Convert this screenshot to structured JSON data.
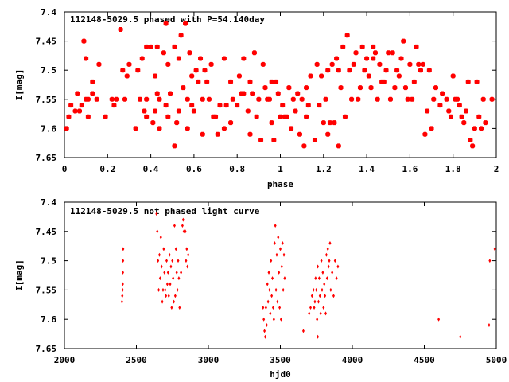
{
  "chart_data": [
    {
      "type": "scatter",
      "title": "112148-5029.5 phased with P=54.140day",
      "xlabel": "phase",
      "ylabel": "I[mag]",
      "xlim": [
        0,
        2
      ],
      "ylim": [
        7.4,
        7.65
      ],
      "y_inverted": true,
      "x_ticks": [
        "0",
        "0.2",
        "0.4",
        "0.6",
        "0.8",
        "1",
        "1.2",
        "1.4",
        "1.6",
        "1.8",
        "2"
      ],
      "y_ticks": [
        "7.4",
        "7.45",
        "7.5",
        "7.55",
        "7.6",
        "7.65"
      ],
      "marker_color": "#ff0000",
      "marker": "filled-circle",
      "points": [
        [
          0.01,
          7.6
        ],
        [
          0.02,
          7.58
        ],
        [
          0.03,
          7.56
        ],
        [
          0.05,
          7.57
        ],
        [
          0.06,
          7.54
        ],
        [
          0.07,
          7.57
        ],
        [
          0.08,
          7.56
        ],
        [
          0.09,
          7.45
        ],
        [
          0.1,
          7.55
        ],
        [
          0.1,
          7.48
        ],
        [
          0.11,
          7.55
        ],
        [
          0.11,
          7.58
        ],
        [
          0.13,
          7.52
        ],
        [
          0.13,
          7.54
        ],
        [
          0.15,
          7.55
        ],
        [
          0.16,
          7.49
        ],
        [
          0.19,
          7.58
        ],
        [
          0.22,
          7.55
        ],
        [
          0.23,
          7.56
        ],
        [
          0.24,
          7.55
        ],
        [
          0.26,
          7.43
        ],
        [
          0.27,
          7.5
        ],
        [
          0.28,
          7.55
        ],
        [
          0.29,
          7.51
        ],
        [
          0.3,
          7.49
        ],
        [
          0.33,
          7.6
        ],
        [
          0.34,
          7.5
        ],
        [
          0.35,
          7.55
        ],
        [
          0.36,
          7.48
        ],
        [
          0.37,
          7.57
        ],
        [
          0.38,
          7.46
        ],
        [
          0.38,
          7.55
        ],
        [
          0.38,
          7.58
        ],
        [
          0.4,
          7.46
        ],
        [
          0.41,
          7.59
        ],
        [
          0.42,
          7.51
        ],
        [
          0.42,
          7.57
        ],
        [
          0.43,
          7.54
        ],
        [
          0.43,
          7.46
        ],
        [
          0.44,
          7.55
        ],
        [
          0.44,
          7.6
        ],
        [
          0.46,
          7.47
        ],
        [
          0.47,
          7.42
        ],
        [
          0.47,
          7.56
        ],
        [
          0.48,
          7.49
        ],
        [
          0.48,
          7.58
        ],
        [
          0.49,
          7.54
        ],
        [
          0.51,
          7.63
        ],
        [
          0.51,
          7.46
        ],
        [
          0.52,
          7.59
        ],
        [
          0.53,
          7.48
        ],
        [
          0.53,
          7.57
        ],
        [
          0.54,
          7.44
        ],
        [
          0.55,
          7.53
        ],
        [
          0.56,
          7.42
        ],
        [
          0.57,
          7.55
        ],
        [
          0.57,
          7.6
        ],
        [
          0.58,
          7.47
        ],
        [
          0.59,
          7.51
        ],
        [
          0.59,
          7.56
        ],
        [
          0.6,
          7.57
        ],
        [
          0.61,
          7.5
        ],
        [
          0.62,
          7.52
        ],
        [
          0.63,
          7.48
        ],
        [
          0.64,
          7.61
        ],
        [
          0.64,
          7.55
        ],
        [
          0.65,
          7.5
        ],
        [
          0.66,
          7.52
        ],
        [
          0.67,
          7.55
        ],
        [
          0.68,
          7.49
        ],
        [
          0.69,
          7.58
        ],
        [
          0.7,
          7.58
        ],
        [
          0.71,
          7.61
        ],
        [
          0.72,
          7.56
        ],
        [
          0.74,
          7.48
        ],
        [
          0.74,
          7.6
        ],
        [
          0.75,
          7.56
        ],
        [
          0.77,
          7.52
        ],
        [
          0.77,
          7.59
        ],
        [
          0.78,
          7.55
        ],
        [
          0.8,
          7.56
        ],
        [
          0.81,
          7.51
        ],
        [
          0.82,
          7.54
        ],
        [
          0.83,
          7.54
        ],
        [
          0.83,
          7.48
        ],
        [
          0.85,
          7.57
        ],
        [
          0.86,
          7.61
        ],
        [
          0.86,
          7.52
        ],
        [
          0.87,
          7.54
        ],
        [
          0.88,
          7.47
        ],
        [
          0.89,
          7.58
        ],
        [
          0.9,
          7.55
        ],
        [
          0.91,
          7.62
        ],
        [
          0.92,
          7.49
        ],
        [
          0.93,
          7.53
        ],
        [
          0.94,
          7.55
        ],
        [
          0.95,
          7.55
        ],
        [
          0.96,
          7.52
        ],
        [
          0.96,
          7.59
        ],
        [
          0.97,
          7.62
        ],
        [
          0.98,
          7.52
        ],
        [
          0.99,
          7.54
        ],
        [
          1.0,
          7.58
        ],
        [
          1.01,
          7.56
        ],
        [
          1.02,
          7.58
        ],
        [
          1.03,
          7.58
        ],
        [
          1.04,
          7.53
        ],
        [
          1.05,
          7.6
        ],
        [
          1.06,
          7.55
        ],
        [
          1.07,
          7.57
        ],
        [
          1.08,
          7.54
        ],
        [
          1.09,
          7.61
        ],
        [
          1.1,
          7.55
        ],
        [
          1.11,
          7.63
        ],
        [
          1.12,
          7.53
        ],
        [
          1.12,
          7.58
        ],
        [
          1.13,
          7.56
        ],
        [
          1.14,
          7.51
        ],
        [
          1.16,
          7.62
        ],
        [
          1.17,
          7.49
        ],
        [
          1.18,
          7.56
        ],
        [
          1.19,
          7.51
        ],
        [
          1.2,
          7.59
        ],
        [
          1.21,
          7.55
        ],
        [
          1.22,
          7.5
        ],
        [
          1.22,
          7.61
        ],
        [
          1.23,
          7.59
        ],
        [
          1.24,
          7.49
        ],
        [
          1.25,
          7.59
        ],
        [
          1.26,
          7.48
        ],
        [
          1.27,
          7.63
        ],
        [
          1.27,
          7.5
        ],
        [
          1.28,
          7.53
        ],
        [
          1.29,
          7.46
        ],
        [
          1.3,
          7.58
        ],
        [
          1.31,
          7.44
        ],
        [
          1.32,
          7.5
        ],
        [
          1.33,
          7.55
        ],
        [
          1.34,
          7.49
        ],
        [
          1.35,
          7.47
        ],
        [
          1.36,
          7.55
        ],
        [
          1.37,
          7.53
        ],
        [
          1.38,
          7.46
        ],
        [
          1.39,
          7.5
        ],
        [
          1.4,
          7.48
        ],
        [
          1.41,
          7.51
        ],
        [
          1.42,
          7.53
        ],
        [
          1.43,
          7.48
        ],
        [
          1.43,
          7.46
        ],
        [
          1.44,
          7.47
        ],
        [
          1.45,
          7.55
        ],
        [
          1.46,
          7.49
        ],
        [
          1.47,
          7.52
        ],
        [
          1.48,
          7.52
        ],
        [
          1.49,
          7.5
        ],
        [
          1.5,
          7.47
        ],
        [
          1.51,
          7.55
        ],
        [
          1.52,
          7.47
        ],
        [
          1.53,
          7.53
        ],
        [
          1.54,
          7.5
        ],
        [
          1.55,
          7.51
        ],
        [
          1.56,
          7.48
        ],
        [
          1.57,
          7.45
        ],
        [
          1.58,
          7.53
        ],
        [
          1.59,
          7.55
        ],
        [
          1.6,
          7.49
        ],
        [
          1.61,
          7.55
        ],
        [
          1.62,
          7.52
        ],
        [
          1.63,
          7.46
        ],
        [
          1.64,
          7.49
        ],
        [
          1.65,
          7.5
        ],
        [
          1.66,
          7.49
        ],
        [
          1.67,
          7.61
        ],
        [
          1.68,
          7.57
        ],
        [
          1.69,
          7.5
        ],
        [
          1.7,
          7.6
        ],
        [
          1.71,
          7.55
        ],
        [
          1.72,
          7.53
        ],
        [
          1.74,
          7.56
        ],
        [
          1.75,
          7.54
        ],
        [
          1.77,
          7.55
        ],
        [
          1.78,
          7.57
        ],
        [
          1.79,
          7.58
        ],
        [
          1.8,
          7.51
        ],
        [
          1.81,
          7.55
        ],
        [
          1.82,
          7.55
        ],
        [
          1.83,
          7.56
        ],
        [
          1.84,
          7.58
        ],
        [
          1.85,
          7.59
        ],
        [
          1.86,
          7.57
        ],
        [
          1.87,
          7.52
        ],
        [
          1.88,
          7.62
        ],
        [
          1.89,
          7.63
        ],
        [
          1.9,
          7.6
        ],
        [
          1.91,
          7.52
        ],
        [
          1.92,
          7.58
        ],
        [
          1.93,
          7.6
        ],
        [
          1.94,
          7.55
        ],
        [
          1.95,
          7.59
        ],
        [
          1.98,
          7.55
        ]
      ]
    },
    {
      "type": "scatter",
      "title": "112148-5029.5 not phased light curve",
      "xlabel": "hjd0",
      "ylabel": "I[mag]",
      "xlim": [
        2000,
        5000
      ],
      "ylim": [
        7.4,
        7.65
      ],
      "y_inverted": true,
      "x_ticks": [
        "2000",
        "2500",
        "3000",
        "3500",
        "4000",
        "4500",
        "5000"
      ],
      "y_ticks": [
        "7.4",
        "7.45",
        "7.5",
        "7.55",
        "7.6",
        "7.65"
      ],
      "marker_color": "#ff0000",
      "marker": "small-diamond",
      "points": [
        [
          2400,
          7.57
        ],
        [
          2402,
          7.56
        ],
        [
          2404,
          7.55
        ],
        [
          2405,
          7.54
        ],
        [
          2406,
          7.52
        ],
        [
          2407,
          7.5
        ],
        [
          2408,
          7.48
        ],
        [
          2640,
          7.42
        ],
        [
          2645,
          7.45
        ],
        [
          2650,
          7.5
        ],
        [
          2655,
          7.55
        ],
        [
          2660,
          7.49
        ],
        [
          2665,
          7.53
        ],
        [
          2670,
          7.46
        ],
        [
          2675,
          7.51
        ],
        [
          2680,
          7.57
        ],
        [
          2685,
          7.55
        ],
        [
          2690,
          7.48
        ],
        [
          2695,
          7.52
        ],
        [
          2700,
          7.55
        ],
        [
          2705,
          7.56
        ],
        [
          2710,
          7.5
        ],
        [
          2715,
          7.54
        ],
        [
          2720,
          7.52
        ],
        [
          2725,
          7.56
        ],
        [
          2730,
          7.49
        ],
        [
          2735,
          7.54
        ],
        [
          2740,
          7.51
        ],
        [
          2745,
          7.58
        ],
        [
          2750,
          7.5
        ],
        [
          2755,
          7.53
        ],
        [
          2760,
          7.57
        ],
        [
          2765,
          7.44
        ],
        [
          2770,
          7.56
        ],
        [
          2775,
          7.48
        ],
        [
          2780,
          7.52
        ],
        [
          2785,
          7.55
        ],
        [
          2790,
          7.5
        ],
        [
          2795,
          7.53
        ],
        [
          2800,
          7.58
        ],
        [
          2810,
          7.52
        ],
        [
          2820,
          7.44
        ],
        [
          2825,
          7.43
        ],
        [
          2830,
          7.45
        ],
        [
          2840,
          7.45
        ],
        [
          2845,
          7.5
        ],
        [
          2850,
          7.48
        ],
        [
          2855,
          7.51
        ],
        [
          2860,
          7.49
        ],
        [
          3380,
          7.58
        ],
        [
          3385,
          7.6
        ],
        [
          3390,
          7.62
        ],
        [
          3395,
          7.63
        ],
        [
          3400,
          7.58
        ],
        [
          3405,
          7.61
        ],
        [
          3410,
          7.54
        ],
        [
          3415,
          7.57
        ],
        [
          3420,
          7.52
        ],
        [
          3425,
          7.55
        ],
        [
          3430,
          7.59
        ],
        [
          3435,
          7.5
        ],
        [
          3440,
          7.56
        ],
        [
          3445,
          7.53
        ],
        [
          3450,
          7.58
        ],
        [
          3455,
          7.6
        ],
        [
          3460,
          7.47
        ],
        [
          3465,
          7.44
        ],
        [
          3470,
          7.55
        ],
        [
          3475,
          7.49
        ],
        [
          3480,
          7.57
        ],
        [
          3485,
          7.46
        ],
        [
          3490,
          7.52
        ],
        [
          3495,
          7.58
        ],
        [
          3500,
          7.48
        ],
        [
          3505,
          7.6
        ],
        [
          3510,
          7.51
        ],
        [
          3515,
          7.47
        ],
        [
          3520,
          7.55
        ],
        [
          3525,
          7.49
        ],
        [
          3530,
          7.53
        ],
        [
          3700,
          7.59
        ],
        [
          3710,
          7.58
        ],
        [
          3720,
          7.56
        ],
        [
          3730,
          7.55
        ],
        [
          3735,
          7.58
        ],
        [
          3740,
          7.57
        ],
        [
          3745,
          7.53
        ],
        [
          3750,
          7.55
        ],
        [
          3755,
          7.6
        ],
        [
          3760,
          7.51
        ],
        [
          3765,
          7.57
        ],
        [
          3770,
          7.53
        ],
        [
          3775,
          7.56
        ],
        [
          3780,
          7.59
        ],
        [
          3785,
          7.5
        ],
        [
          3790,
          7.55
        ],
        [
          3795,
          7.52
        ],
        [
          3800,
          7.58
        ],
        [
          3805,
          7.54
        ],
        [
          3810,
          7.56
        ],
        [
          3815,
          7.59
        ],
        [
          3820,
          7.49
        ],
        [
          3825,
          7.53
        ],
        [
          3830,
          7.48
        ],
        [
          3835,
          7.51
        ],
        [
          3840,
          7.5
        ],
        [
          3845,
          7.47
        ],
        [
          3850,
          7.55
        ],
        [
          3860,
          7.52
        ],
        [
          3870,
          7.56
        ],
        [
          3880,
          7.5
        ],
        [
          3890,
          7.53
        ],
        [
          3900,
          7.51
        ],
        [
          3660,
          7.62
        ],
        [
          3760,
          7.63
        ],
        [
          4600,
          7.6
        ],
        [
          4750,
          7.63
        ],
        [
          4950,
          7.61
        ],
        [
          4955,
          7.5
        ],
        [
          4990,
          7.48
        ]
      ]
    }
  ]
}
